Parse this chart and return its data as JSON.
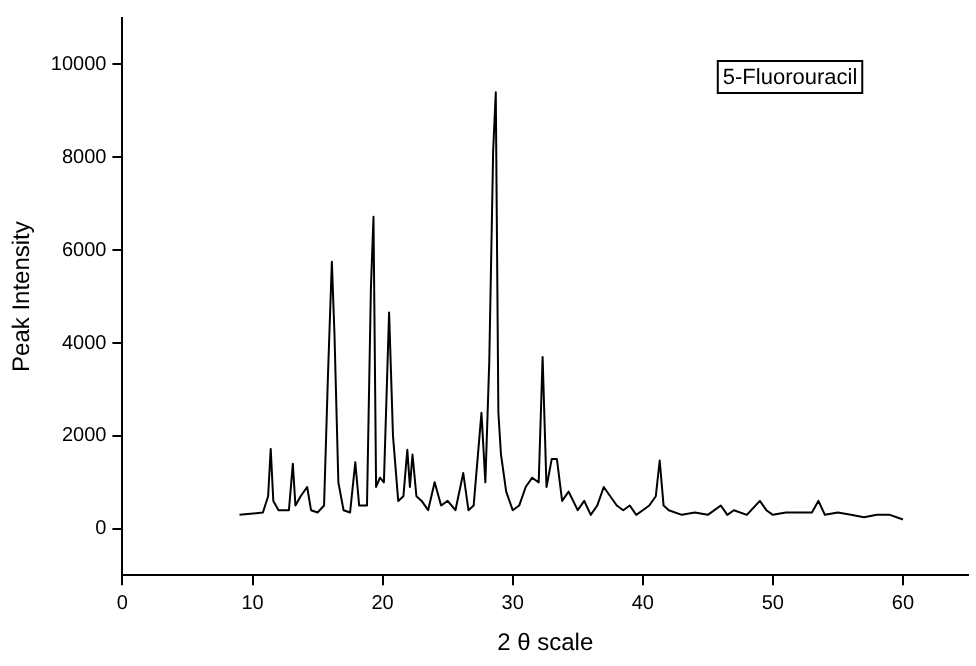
{
  "chart_data": {
    "type": "line",
    "xlabel": "2 θ scale",
    "ylabel": "Peak Intensity",
    "annotations": [
      "5-Fluorouracil"
    ],
    "xlim": [
      0,
      65
    ],
    "xticks": [
      0,
      10,
      20,
      30,
      40,
      50,
      60
    ],
    "ylim": [
      -1000,
      11000
    ],
    "yticks": [
      0,
      2000,
      4000,
      6000,
      8000,
      10000
    ],
    "grid": false,
    "legend": false,
    "marker": "none",
    "line_style": "solid",
    "series": [
      {
        "color": "#000000",
        "x": [
          9.0,
          10.8,
          11.2,
          11.4,
          11.6,
          12.0,
          12.8,
          13.1,
          13.3,
          13.7,
          14.2,
          14.5,
          15.0,
          15.5,
          15.8,
          16.1,
          16.3,
          16.6,
          17.0,
          17.5,
          17.9,
          18.2,
          18.8,
          19.1,
          19.3,
          19.5,
          19.8,
          20.1,
          20.5,
          20.8,
          21.2,
          21.6,
          21.9,
          22.1,
          22.3,
          22.6,
          23.0,
          23.5,
          24.0,
          24.5,
          25.0,
          25.6,
          26.2,
          26.6,
          27.0,
          27.6,
          27.9,
          28.2,
          28.5,
          28.7,
          28.9,
          29.1,
          29.5,
          30.0,
          30.5,
          31.0,
          31.5,
          32.0,
          32.3,
          32.6,
          33.0,
          33.4,
          33.8,
          34.3,
          35.0,
          35.5,
          36.0,
          36.5,
          37.0,
          37.5,
          38.0,
          38.5,
          39.0,
          39.5,
          40.0,
          40.5,
          41.0,
          41.3,
          41.6,
          42.0,
          43.0,
          44.0,
          45.0,
          46.0,
          46.5,
          47.0,
          48.0,
          49.0,
          49.5,
          50.0,
          51.0,
          52.0,
          53.0,
          53.5,
          54.0,
          55.0,
          56.0,
          57.0,
          58.0,
          59.0,
          60.0
        ],
        "values": [
          300,
          350,
          700,
          1720,
          600,
          400,
          400,
          1400,
          500,
          700,
          900,
          400,
          350,
          500,
          3300,
          5750,
          4200,
          1000,
          400,
          350,
          1430,
          500,
          500,
          5170,
          6720,
          900,
          1100,
          1000,
          4660,
          2000,
          600,
          700,
          1700,
          900,
          1600,
          700,
          600,
          400,
          1000,
          500,
          600,
          400,
          1200,
          400,
          500,
          2500,
          1000,
          3600,
          8150,
          9400,
          2500,
          1600,
          800,
          400,
          500,
          900,
          1100,
          1000,
          3700,
          900,
          1500,
          1500,
          600,
          800,
          400,
          600,
          300,
          500,
          900,
          700,
          500,
          400,
          500,
          300,
          400,
          500,
          700,
          1470,
          500,
          400,
          300,
          350,
          300,
          500,
          300,
          400,
          300,
          600,
          400,
          300,
          350,
          350,
          350,
          600,
          300,
          350,
          300,
          250,
          300,
          300,
          200
        ]
      }
    ]
  }
}
